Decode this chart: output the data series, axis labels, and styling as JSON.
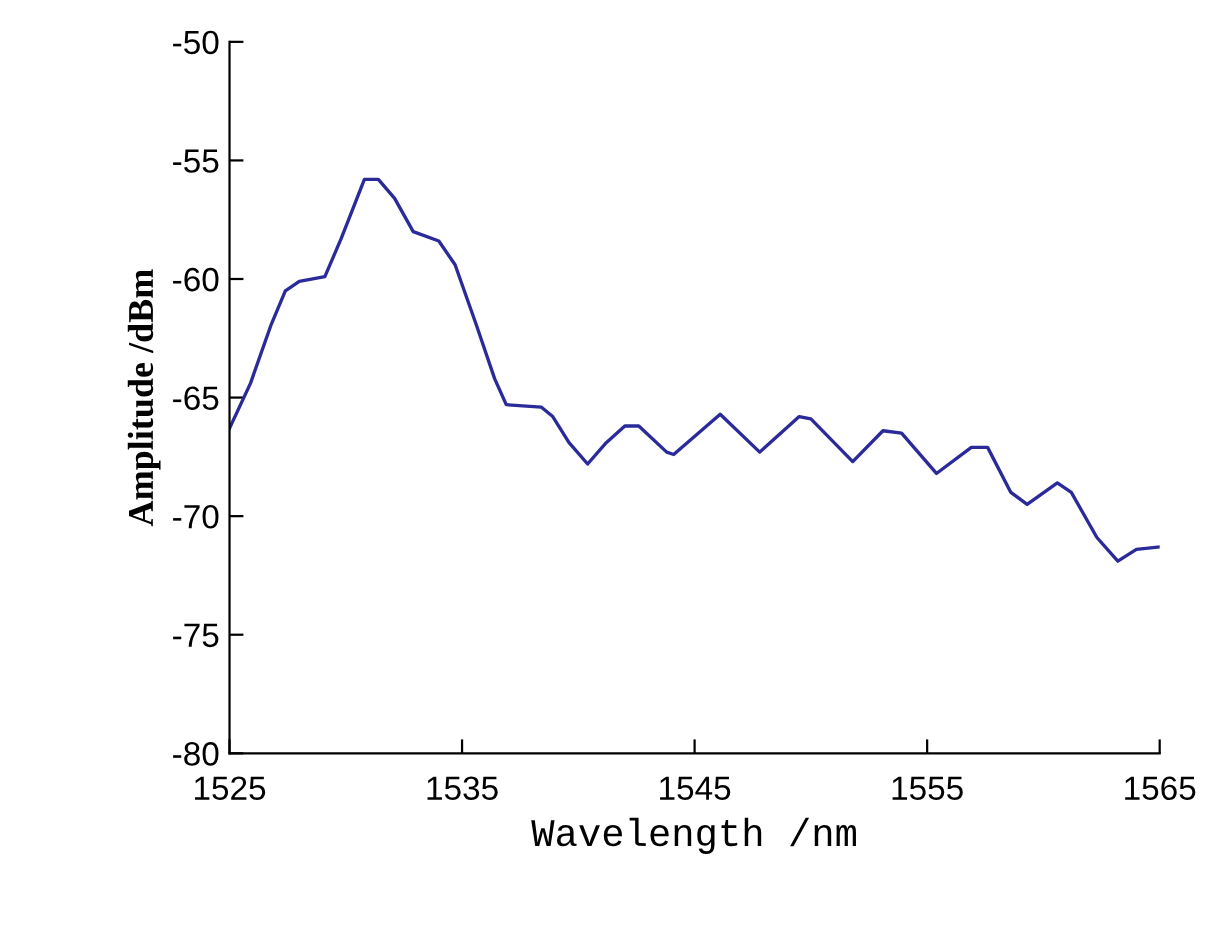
{
  "chart_data": {
    "type": "line",
    "xlabel": "Wavelength /nm",
    "ylabel": "Amplitude /dBm",
    "xlim": [
      1525,
      1565
    ],
    "xticks": [
      1525,
      1535,
      1545,
      1555,
      1565
    ],
    "ylim": [
      -80,
      -50
    ],
    "yticks": [
      -80,
      -75,
      -70,
      -65,
      -60,
      -55,
      -50
    ],
    "grid": false,
    "legend": false,
    "marker": "none",
    "line_style": "solid",
    "series": [
      {
        "color": "#2a2a9a",
        "x": [
          1525.0,
          1525.9,
          1526.8,
          1527.4,
          1528.0,
          1529.1,
          1529.8,
          1530.4,
          1530.8,
          1531.4,
          1532.1,
          1532.9,
          1534.0,
          1534.7,
          1535.6,
          1536.4,
          1536.9,
          1538.4,
          1538.9,
          1539.6,
          1540.4,
          1541.2,
          1542.0,
          1542.6,
          1543.8,
          1544.1,
          1546.1,
          1547.8,
          1549.5,
          1550.0,
          1551.8,
          1553.1,
          1553.9,
          1555.4,
          1556.9,
          1557.6,
          1558.6,
          1559.3,
          1560.6,
          1561.2,
          1562.3,
          1563.2,
          1564.0,
          1565.0
        ],
        "values": [
          -66.3,
          -64.4,
          -61.9,
          -60.5,
          -60.1,
          -59.9,
          -58.3,
          -56.8,
          -55.8,
          -55.8,
          -56.6,
          -58.0,
          -58.4,
          -59.4,
          -61.9,
          -64.2,
          -65.3,
          -65.4,
          -65.8,
          -66.9,
          -67.8,
          -66.9,
          -66.2,
          -66.2,
          -67.3,
          -67.4,
          -65.7,
          -67.3,
          -65.8,
          -65.9,
          -67.7,
          -66.4,
          -66.5,
          -68.2,
          -67.1,
          -67.1,
          -69.0,
          -69.5,
          -68.6,
          -69.0,
          -70.9,
          -71.9,
          -71.4,
          -71.3
        ]
      }
    ]
  }
}
